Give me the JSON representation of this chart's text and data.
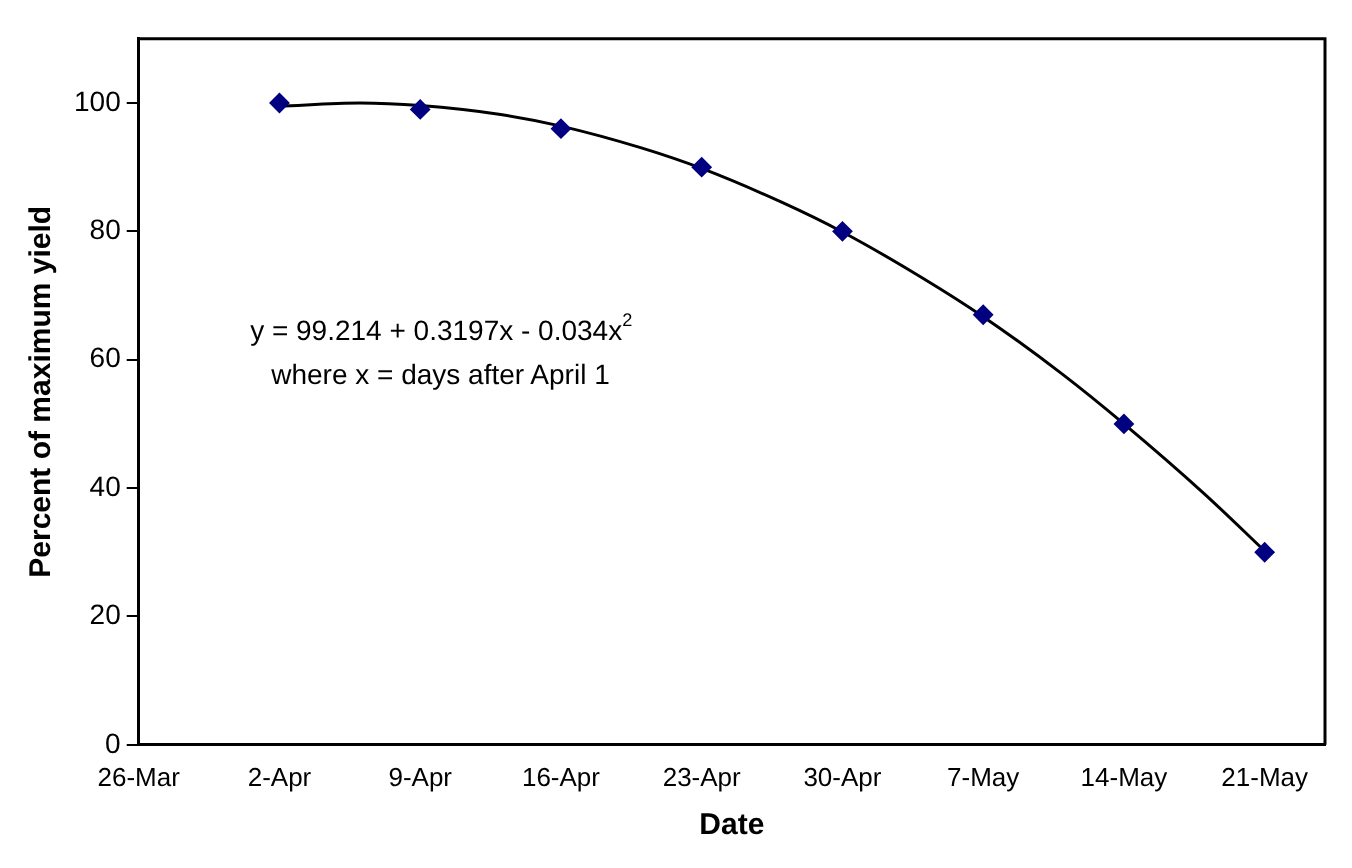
{
  "chart_data": {
    "type": "scatter",
    "xlabel": "Date",
    "ylabel": "Percent of maximum yield",
    "annotations": [
      "y = 99.214 + 0.3197x - 0.034x$^{2}$",
      "where x = days after April 1"
    ],
    "x": [
      "--04-02",
      "--04-09",
      "--04-16",
      "--04-23",
      "--04-30",
      "--05-07",
      "--05-14",
      "--05-21"
    ],
    "series": [
      {
        "color": "#000080",
        "marker": "diamond",
        "values": [
          100,
          99,
          96,
          90,
          80,
          67,
          50,
          30
        ]
      },
      {
        "type": "line",
        "color": "#000000",
        "marker": "none",
        "x": [
          "--04-02",
          "--04-06",
          "--04-09",
          "--04-13",
          "--04-16",
          "--04-20",
          "--04-23",
          "--04-27",
          "--04-30",
          "--05-04",
          "--05-07",
          "--05-11",
          "--05-14",
          "--05-18",
          "--05-21"
        ],
        "values": [
          99.5,
          100,
          99.6,
          98.2,
          96.4,
          93.0,
          89.8,
          84.5,
          79.9,
          72.7,
          66.7,
          57.6,
          50.0,
          39.1,
          30.2
        ]
      }
    ],
    "xlim": [
      "--03-26",
      "--05-24"
    ],
    "xticks": [
      {
        "value": "--03-26",
        "label": "26-Mar"
      },
      {
        "value": "--04-02",
        "label": "2-Apr"
      },
      {
        "value": "--04-09",
        "label": "9-Apr"
      },
      {
        "value": "--04-16",
        "label": "16-Apr"
      },
      {
        "value": "--04-23",
        "label": "23-Apr"
      },
      {
        "value": "--04-30",
        "label": "30-Apr"
      },
      {
        "value": "--05-07",
        "label": "7-May"
      },
      {
        "value": "--05-14",
        "label": "14-May"
      },
      {
        "value": "--05-21",
        "label": "21-May"
      }
    ],
    "ylim": [
      0,
      110
    ],
    "yticks": [
      0,
      20,
      40,
      60,
      80,
      100
    ],
    "grid": false,
    "legend": false
  }
}
